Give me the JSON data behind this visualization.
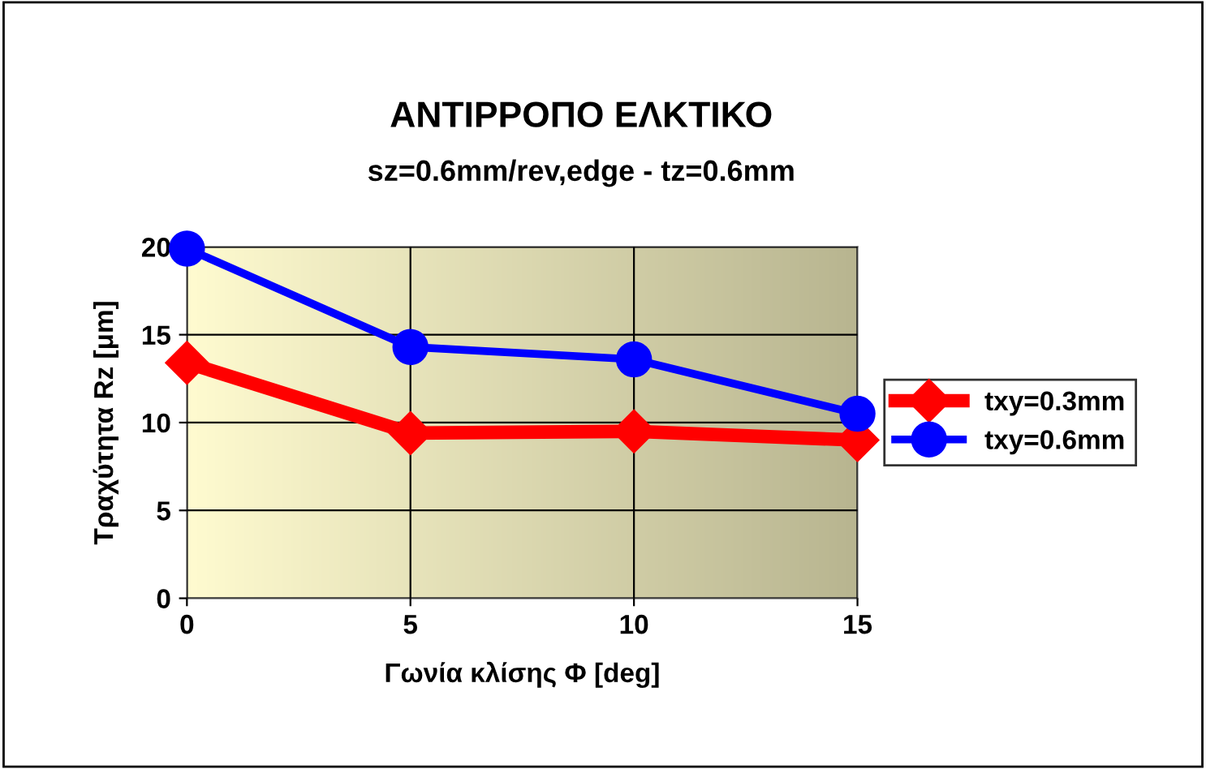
{
  "chart_data": {
    "type": "line",
    "title": "ΑΝΤΙΡΡΟΠΟ ΕΛΚΤΙΚΟ",
    "subtitle": "sz=0.6mm/rev,edge - tz=0.6mm",
    "xlabel": "Γωνία κλίσης Φ [deg]",
    "ylabel": "Τραχύτητα Rz [μm]",
    "x": [
      0,
      5,
      10,
      15
    ],
    "xlim": [
      0,
      15
    ],
    "xticks": [
      0,
      5,
      10,
      15
    ],
    "ylim": [
      0,
      20
    ],
    "yticks": [
      0,
      5,
      10,
      15,
      20
    ],
    "grid": true,
    "legend": "right",
    "series": [
      {
        "name": "txy=0.3mm",
        "color": "#ff0000",
        "values": [
          13.4,
          9.4,
          9.5,
          9.0
        ],
        "marker": "diamond"
      },
      {
        "name": "txy=0.6mm",
        "color": "#0000ff",
        "values": [
          19.9,
          14.3,
          13.6,
          10.5
        ],
        "marker": "circle"
      }
    ]
  }
}
